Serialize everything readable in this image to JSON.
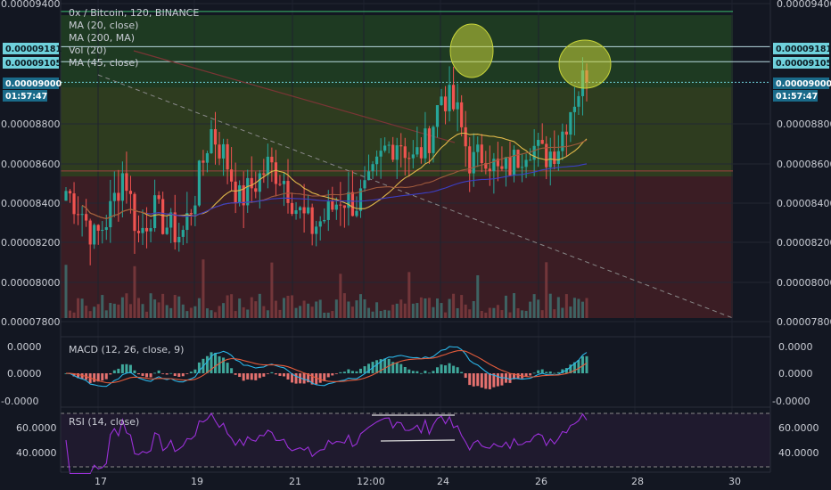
{
  "main_legend": {
    "title": "0x / Bitcoin, 120, BINANCE",
    "ma20": "MA (20, close)",
    "ma200": "MA (200, MA)",
    "vol": "Vol (20)",
    "ma45": "MA (45, close)"
  },
  "macd_legend": "MACD (12, 26, close, 9)",
  "rsi_legend": "RSI (14, close)",
  "price_axis": {
    "ticks": [
      "0.00009400",
      "0.00008800",
      "0.00008600",
      "0.00008400",
      "0.00008200",
      "0.00008000",
      "0.00007800"
    ],
    "tags": {
      "upper": "0.00009181",
      "mid": "0.00009105",
      "last": "0.00009000",
      "countdown": "01:57:47"
    }
  },
  "macd_axis": [
    "0.0000",
    "0.0000",
    "-0.0000"
  ],
  "rsi_axis": [
    "60.0000",
    "40.0000"
  ],
  "time_axis": [
    "17",
    "19",
    "21",
    "12:00",
    "24",
    "26",
    "28",
    "30"
  ],
  "colors": {
    "up": "#26a69a",
    "down": "#ef5350",
    "zone_green": "#1f3a1f",
    "zone_olive": "#2c3d1e",
    "zone_red": "#3a1c22",
    "ma20": "#e0b84a",
    "ma45": "#a05a3c",
    "ma200": "#3b3fc4",
    "macd": "#2bb5e8",
    "signal": "#e35b3b",
    "rsi": "#9b30d9",
    "ellipse": "#c8d43a"
  },
  "chart_data": {
    "type": "candlestick",
    "symbol": "0x / Bitcoin",
    "interval": "120",
    "exchange": "BINANCE",
    "x_ticks": [
      "17",
      "19",
      "21",
      "12:00",
      "24",
      "26",
      "28",
      "30"
    ],
    "price_range": [
      7.78e-05,
      9.4e-05
    ],
    "price_levels": {
      "top_resistance": 9.36e-05,
      "res_1": 9.181e-05,
      "res_2": 9.105e-05,
      "current": 9e-05,
      "support": 8.55e-05
    },
    "close_path_sampled": [
      8.45e-05,
      8.36e-05,
      8.2e-05,
      8.33e-05,
      8.56e-05,
      8.22e-05,
      8.36e-05,
      8.27e-05,
      8.22e-05,
      8.45e-05,
      8.76e-05,
      8.62e-05,
      8.4e-05,
      8.48e-05,
      8.58e-05,
      8.52e-05,
      8.35e-05,
      8.26e-05,
      8.32e-05,
      8.42e-05,
      8.38e-05,
      8.47e-05,
      8.65e-05,
      8.72e-05,
      8.6e-05,
      8.7e-05,
      8.95e-05,
      8.85e-05,
      8.58e-05,
      8.65e-05,
      8.52e-05,
      8.6e-05,
      8.7e-05,
      8.62e-05,
      8.68e-05,
      8.9e-05,
      9.05e-05
    ],
    "macd_range": [
      -1e-06,
      1e-06
    ],
    "rsi_range": [
      30,
      70
    ],
    "rsi_levels": [
      70,
      30
    ]
  }
}
